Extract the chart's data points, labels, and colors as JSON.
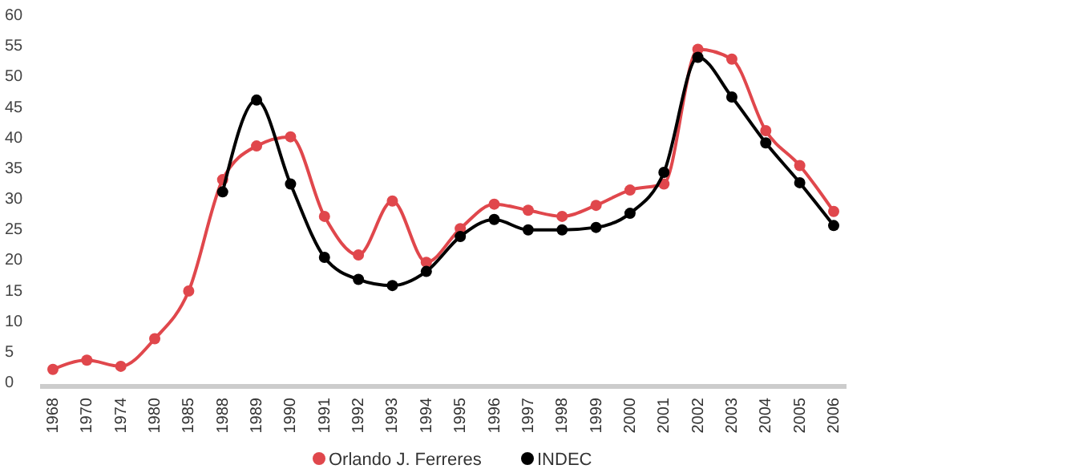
{
  "chart_data": {
    "type": "line",
    "categories": [
      "1968",
      "1970",
      "1974",
      "1980",
      "1985",
      "1988",
      "1989",
      "1990",
      "1991",
      "1992",
      "1993",
      "1994",
      "1995",
      "1996",
      "1997",
      "1998",
      "1999",
      "2000",
      "2001",
      "2002",
      "2003",
      "2004",
      "2005",
      "2006"
    ],
    "series": [
      {
        "name": "Orlando J. Ferreres",
        "color": "#e0474c",
        "values": [
          2,
          3.5,
          2.5,
          7,
          14.8,
          33,
          38.5,
          40,
          27,
          20.7,
          29.5,
          19.5,
          25,
          29,
          28,
          27,
          28.8,
          31.3,
          32.3,
          54.3,
          52.7,
          41,
          35.3,
          27.8
        ]
      },
      {
        "name": "INDEC",
        "color": "#000000",
        "values": [
          null,
          null,
          null,
          null,
          null,
          31,
          46,
          32.3,
          20.3,
          16.7,
          15.7,
          18,
          23.7,
          26.5,
          24.8,
          24.8,
          25.2,
          27.5,
          34.2,
          53,
          46.5,
          39,
          32.5,
          25.5
        ]
      }
    ],
    "ylim": [
      0,
      60
    ],
    "yticks": [
      0,
      5,
      10,
      15,
      20,
      25,
      30,
      35,
      40,
      45,
      50,
      55,
      60
    ],
    "grid": false,
    "legend": "bottom",
    "marker": "circle",
    "line_style": "solid"
  }
}
